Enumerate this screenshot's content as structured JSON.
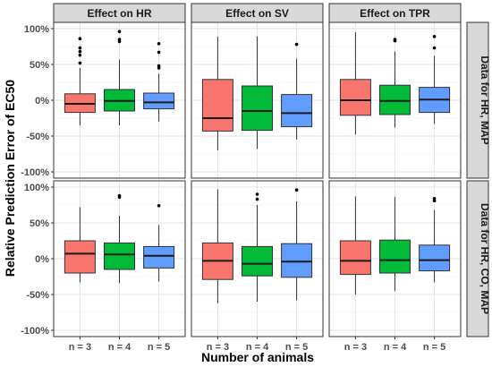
{
  "chart_data": {
    "type": "boxplot",
    "xlabel": "Number of animals",
    "ylabel": "Relative Prediction Error of EC50",
    "ylim": [
      -100,
      100
    ],
    "yticks": [
      -100,
      -50,
      0,
      50,
      100
    ],
    "ytick_labels": [
      "-100%",
      "-50%",
      "0%",
      "50%",
      "100%"
    ],
    "categories": [
      "n = 3",
      "n = 4",
      "n = 5"
    ],
    "category_colors": [
      "#F8766D",
      "#00BA38",
      "#619CFF"
    ],
    "grid": true,
    "columns": [
      "Effect on HR",
      "Effect on SV",
      "Effect on TPR"
    ],
    "rows": [
      "Data for HR, MAP",
      "Data for HR, CO, MAP"
    ],
    "panels": [
      {
        "row": 0,
        "col": 0,
        "boxes": [
          {
            "whislo": -35,
            "q1": -17,
            "med": -5,
            "q3": 9,
            "whishi": 45,
            "fliers": [
              52,
              63,
              68,
              73,
              86
            ]
          },
          {
            "whislo": -35,
            "q1": -15,
            "med": -1,
            "q3": 15,
            "whishi": 57,
            "fliers": [
              82,
              85,
              96
            ]
          },
          {
            "whislo": -30,
            "q1": -12,
            "med": -3,
            "q3": 10,
            "whishi": 37,
            "fliers": [
              45,
              48,
              67,
              79
            ]
          }
        ]
      },
      {
        "row": 0,
        "col": 1,
        "boxes": [
          {
            "whislo": -70,
            "q1": -43,
            "med": -25,
            "q3": 29,
            "whishi": 89,
            "fliers": []
          },
          {
            "whislo": -68,
            "q1": -42,
            "med": -15,
            "q3": 20,
            "whishi": 89,
            "fliers": []
          },
          {
            "whislo": -55,
            "q1": -37,
            "med": -18,
            "q3": 8,
            "whishi": 58,
            "fliers": [
              78
            ]
          }
        ]
      },
      {
        "row": 0,
        "col": 2,
        "boxes": [
          {
            "whislo": -48,
            "q1": -21,
            "med": 0,
            "q3": 29,
            "whishi": 95,
            "fliers": []
          },
          {
            "whislo": -38,
            "q1": -20,
            "med": -1,
            "q3": 21,
            "whishi": 68,
            "fliers": [
              83,
              85
            ]
          },
          {
            "whislo": -33,
            "q1": -17,
            "med": 1,
            "q3": 18,
            "whishi": 62,
            "fliers": [
              73,
              89
            ]
          }
        ]
      },
      {
        "row": 1,
        "col": 0,
        "boxes": [
          {
            "whislo": -33,
            "q1": -20,
            "med": 7,
            "q3": 25,
            "whishi": 72,
            "fliers": []
          },
          {
            "whislo": -34,
            "q1": -15,
            "med": 6,
            "q3": 22,
            "whishi": 60,
            "fliers": [
              86,
              88
            ]
          },
          {
            "whislo": -32,
            "q1": -13,
            "med": 4,
            "q3": 17,
            "whishi": 47,
            "fliers": [
              74
            ]
          }
        ]
      },
      {
        "row": 1,
        "col": 1,
        "boxes": [
          {
            "whislo": -62,
            "q1": -29,
            "med": -3,
            "q3": 22,
            "whishi": 97,
            "fliers": []
          },
          {
            "whislo": -60,
            "q1": -24,
            "med": -7,
            "q3": 17,
            "whishi": 75,
            "fliers": [
              83,
              90
            ]
          },
          {
            "whislo": -58,
            "q1": -26,
            "med": -4,
            "q3": 21,
            "whishi": 80,
            "fliers": [
              96
            ]
          }
        ]
      },
      {
        "row": 1,
        "col": 2,
        "boxes": [
          {
            "whislo": -50,
            "q1": -22,
            "med": -3,
            "q3": 25,
            "whishi": 87,
            "fliers": []
          },
          {
            "whislo": -45,
            "q1": -20,
            "med": -2,
            "q3": 26,
            "whishi": 86,
            "fliers": []
          },
          {
            "whislo": -33,
            "q1": -17,
            "med": -2,
            "q3": 19,
            "whishi": 68,
            "fliers": [
              81,
              84
            ]
          }
        ]
      }
    ]
  }
}
